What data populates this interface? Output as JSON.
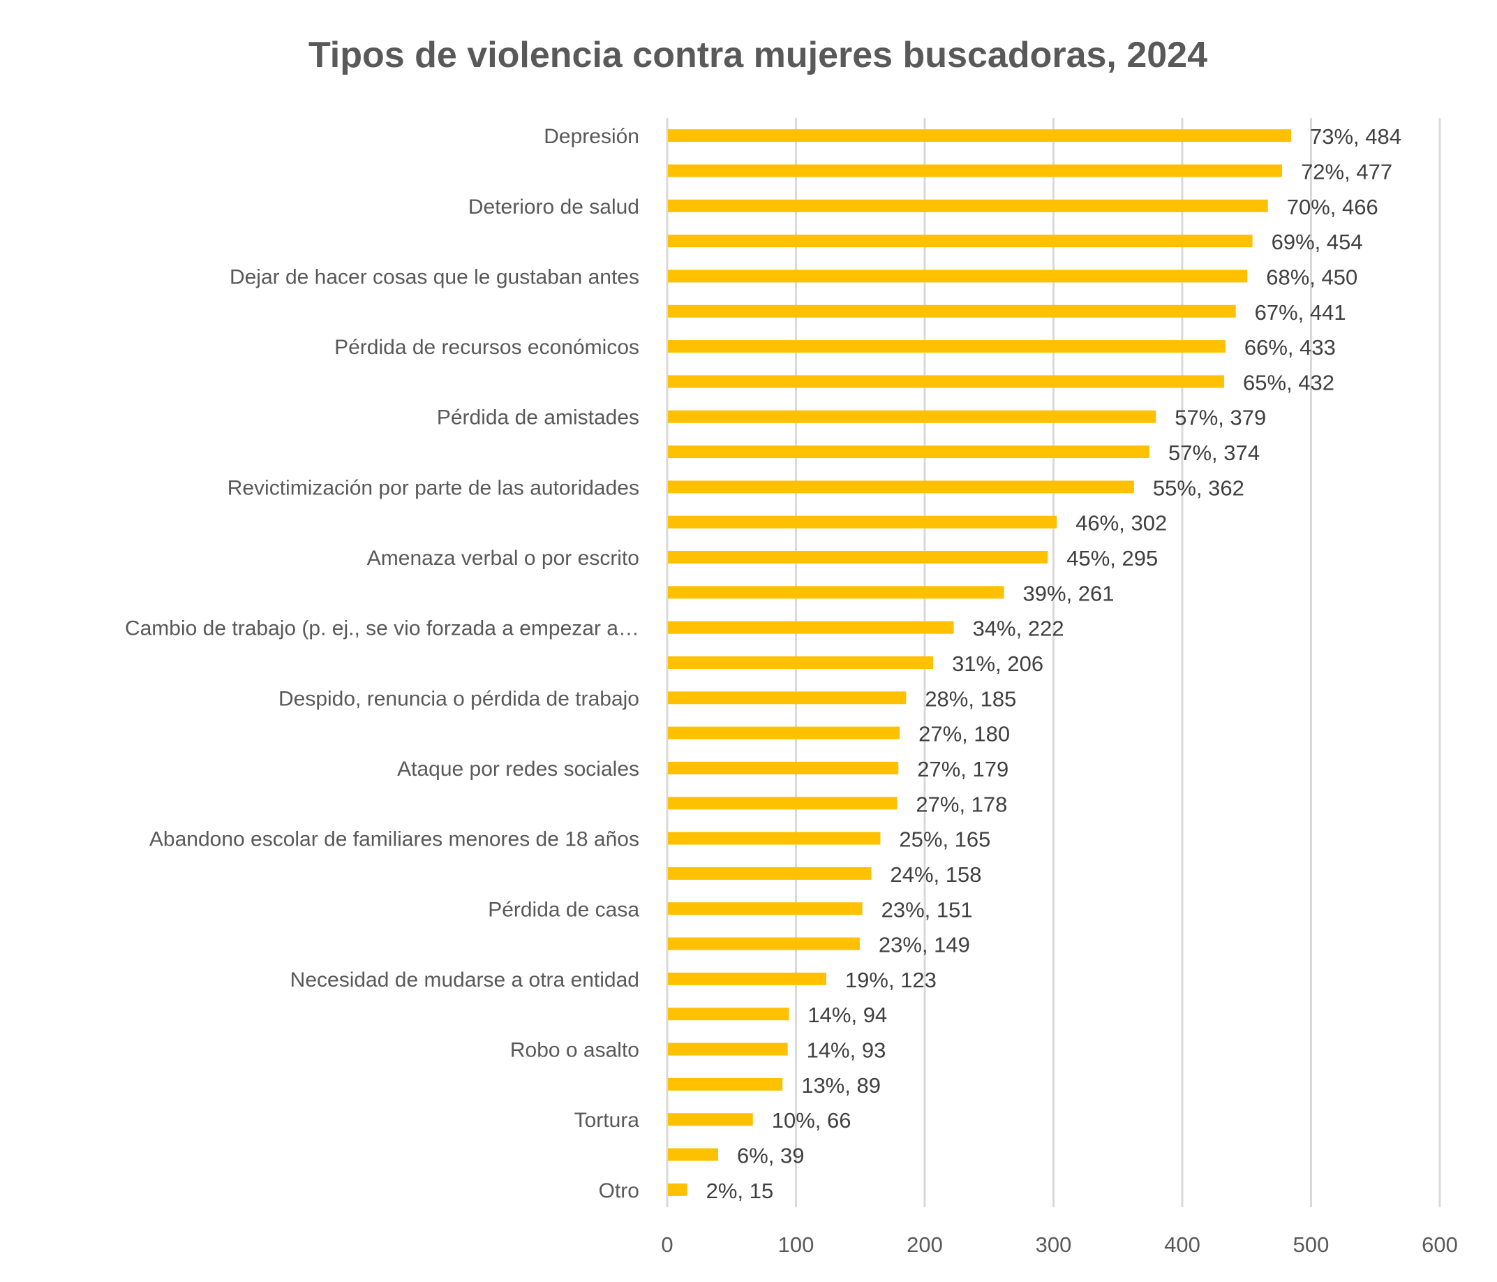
{
  "chart_data": {
    "type": "bar",
    "orientation": "horizontal",
    "title": "Tipos de violencia contra mujeres buscadoras, 2024",
    "xlabel": "",
    "ylabel": "",
    "xlim": [
      0,
      600
    ],
    "xticks": [
      0,
      100,
      200,
      300,
      400,
      500,
      600
    ],
    "xtick_labels": [
      "0",
      "100",
      "200",
      "300",
      "400",
      "500",
      "600"
    ],
    "grid": true,
    "legend": "none",
    "bar_color": "#FFC000",
    "categories": [
      "Depresión",
      "",
      "Deterioro de salud",
      "",
      "Dejar de hacer cosas que le gustaban antes",
      "",
      "Pérdida de recursos económicos",
      "",
      "Pérdida de amistades",
      "",
      "Revictimización por parte de las autoridades",
      "",
      "Amenaza verbal o por escrito",
      "",
      "Cambio de trabajo (p. ej., se vio forzada a empezar a…",
      "",
      "Despido, renuncia o pérdida de trabajo",
      "",
      "Ataque por redes sociales",
      "",
      "Abandono escolar de familiares menores de 18 años",
      "",
      "Pérdida de casa",
      "",
      "Necesidad de mudarse a otra entidad",
      "",
      "Robo o asalto",
      "",
      "Tortura",
      "",
      "Otro"
    ],
    "values": [
      484,
      477,
      466,
      454,
      450,
      441,
      433,
      432,
      379,
      374,
      362,
      302,
      295,
      261,
      222,
      206,
      185,
      180,
      179,
      178,
      165,
      158,
      151,
      149,
      123,
      94,
      93,
      89,
      66,
      39,
      15
    ],
    "percentages": [
      73,
      72,
      70,
      69,
      68,
      67,
      66,
      65,
      57,
      57,
      55,
      46,
      45,
      39,
      34,
      31,
      28,
      27,
      27,
      27,
      25,
      24,
      23,
      23,
      19,
      14,
      14,
      13,
      10,
      6,
      2
    ],
    "data_labels": [
      "73%, 484",
      "72%, 477",
      "70%, 466",
      "69%, 454",
      "68%, 450",
      "67%, 441",
      "66%, 433",
      "65%, 432",
      "57%, 379",
      "57%, 374",
      "55%, 362",
      "46%, 302",
      "45%, 295",
      "39%, 261",
      "34%, 222",
      "31%, 206",
      "28%, 185",
      "27%, 180",
      "27%, 179",
      "27%, 178",
      "25%, 165",
      "24%, 158",
      "23%, 151",
      "23%, 149",
      "19%, 123",
      "14%, 94",
      "14%, 93",
      "13%, 89",
      "10%, 66",
      "6%, 39",
      "2%, 15"
    ]
  }
}
